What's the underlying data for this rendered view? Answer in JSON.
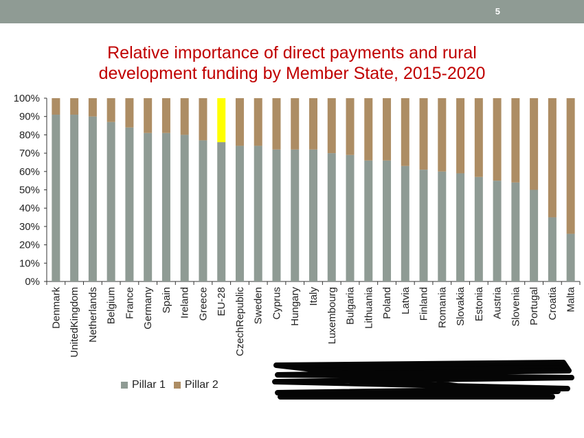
{
  "slide_number": "5",
  "title_line1": "Relative importance of direct payments and rural",
  "title_line2": "development funding by Member State, 2015-2020",
  "colors": {
    "topbar": "#8f9b94",
    "title": "#c00000",
    "pillar1": "#8f9b94",
    "pillar2": "#ad8d64",
    "highlight": "#ffff00"
  },
  "chart_data": {
    "type": "bar",
    "stacked": true,
    "title": "Relative importance of direct payments and rural development funding by Member State, 2015-2020",
    "categories": [
      "Denmark",
      "UnitedKingdom",
      "Netherlands",
      "Belgium",
      "France",
      "Germany",
      "Spain",
      "Ireland",
      "Greece",
      "EU-28",
      "CzechRepublic",
      "Sweden",
      "Cyprus",
      "Hungary",
      "Italy",
      "Luxembourg",
      "Bulgaria",
      "Lithuania",
      "Poland",
      "Latvia",
      "Finland",
      "Romania",
      "Slovakia",
      "Estonia",
      "Austria",
      "Slovenia",
      "Portugal",
      "Croatia",
      "Malta"
    ],
    "series": [
      {
        "name": "Pillar 1",
        "color": "#8f9b94",
        "values": [
          91,
          91,
          90,
          87,
          84,
          81,
          81,
          80,
          77,
          76,
          74,
          74,
          72,
          72,
          72,
          70,
          69,
          66,
          66,
          63,
          61,
          60,
          59,
          57,
          55,
          54,
          50,
          35,
          26
        ]
      },
      {
        "name": "Pillar 2",
        "color": "#ad8d64",
        "values": [
          9,
          9,
          10,
          13,
          16,
          19,
          19,
          20,
          23,
          24,
          26,
          26,
          28,
          28,
          28,
          30,
          31,
          34,
          34,
          37,
          39,
          40,
          41,
          43,
          45,
          46,
          50,
          65,
          74
        ]
      }
    ],
    "highlight_category": "EU-28",
    "highlight_color": "#ffff00",
    "yticks": [
      "0%",
      "10%",
      "20%",
      "30%",
      "40%",
      "50%",
      "60%",
      "70%",
      "80%",
      "90%",
      "100%"
    ],
    "ylim": [
      0,
      100
    ],
    "legend_position": "bottom-left",
    "grid": false
  }
}
